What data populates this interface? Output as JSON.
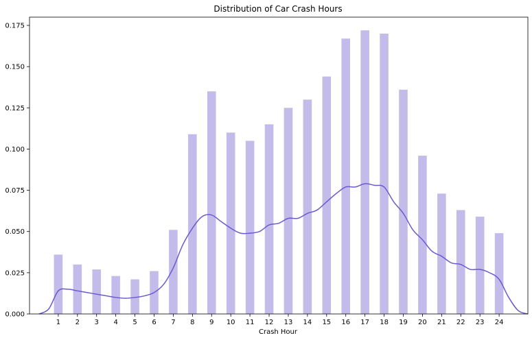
{
  "chart_data": {
    "type": "bar",
    "title": "Distribution of Car Crash Hours",
    "xlabel": "Crash Hour",
    "ylabel": "",
    "categories": [
      "1",
      "2",
      "3",
      "4",
      "5",
      "6",
      "7",
      "8",
      "9",
      "10",
      "11",
      "12",
      "13",
      "14",
      "15",
      "16",
      "17",
      "18",
      "19",
      "20",
      "21",
      "22",
      "23",
      "24"
    ],
    "values": [
      0.036,
      0.03,
      0.027,
      0.023,
      0.021,
      0.026,
      0.051,
      0.109,
      0.135,
      0.11,
      0.105,
      0.115,
      0.125,
      0.13,
      0.144,
      0.167,
      0.172,
      0.17,
      0.136,
      0.096,
      0.073,
      0.063,
      0.059,
      0.049
    ],
    "xlim": [
      -0.5,
      25.5
    ],
    "ylim": [
      0,
      0.18
    ],
    "yticks": [
      "0.000",
      "0.025",
      "0.050",
      "0.075",
      "0.100",
      "0.125",
      "0.150",
      "0.175"
    ],
    "bar_color": "#c3bceb",
    "kde_color": "#6a5acd",
    "grid": false,
    "kde": {
      "x": [
        0,
        0.5,
        1,
        1.5,
        2,
        2.5,
        3,
        3.5,
        4,
        4.5,
        5,
        5.5,
        6,
        6.5,
        7,
        7.5,
        8,
        8.5,
        9,
        9.5,
        10,
        10.5,
        11,
        11.5,
        12,
        12.5,
        13,
        13.5,
        14,
        14.5,
        15,
        15.5,
        16,
        16.5,
        17,
        17.5,
        18,
        18.5,
        19,
        19.5,
        20,
        20.5,
        21,
        21.5,
        22,
        22.5,
        23,
        23.5,
        24,
        24.5,
        25,
        25.5
      ],
      "y": [
        0.0,
        0.003,
        0.014,
        0.015,
        0.014,
        0.013,
        0.012,
        0.011,
        0.01,
        0.0095,
        0.01,
        0.011,
        0.013,
        0.018,
        0.028,
        0.042,
        0.052,
        0.059,
        0.06,
        0.056,
        0.052,
        0.049,
        0.049,
        0.05,
        0.054,
        0.055,
        0.058,
        0.058,
        0.061,
        0.063,
        0.068,
        0.073,
        0.077,
        0.077,
        0.079,
        0.078,
        0.077,
        0.068,
        0.061,
        0.051,
        0.045,
        0.038,
        0.035,
        0.031,
        0.03,
        0.027,
        0.027,
        0.025,
        0.021,
        0.01,
        0.002,
        0.0
      ]
    }
  }
}
